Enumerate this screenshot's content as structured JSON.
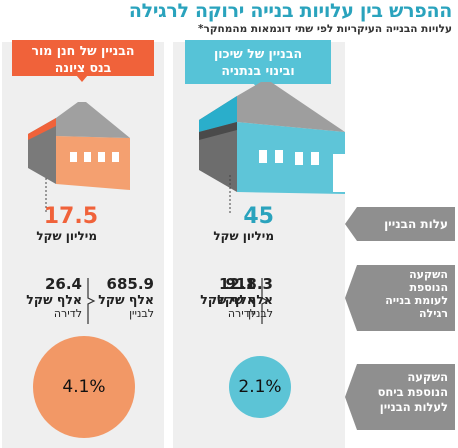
{
  "title": "ההפרש בין עלויות בנייה ירוקה לרגילה",
  "subtitle": "עלויות הבנייה העיקריות לפי שתי דוגמאות מהמחקר*",
  "colors": {
    "accent_blue": "#56c3d7",
    "accent_orange": "#f0623a",
    "circle_orange": "#f29866",
    "circle_blue": "#5cc4d6",
    "label_gray": "#8f8f8f"
  },
  "row_labels": {
    "building_cost": "עלות הבניין",
    "extra_investment": [
      "השקעה",
      "הנוספת",
      "לעומת בנייה",
      "רגילה"
    ],
    "ratio_investment": [
      "השקעה",
      "הנוספת ביחס",
      "לעלות הבניין"
    ]
  },
  "netanya": {
    "header": [
      "הבניין של שיכון",
      "ובינוי בנתניה"
    ],
    "cost_value": "45",
    "cost_unit": "מיליון שקל",
    "per_building_value": "918.3",
    "per_building_unit": "אלף שקל",
    "per_building_label": "לבניין",
    "per_unit_value": "12.1",
    "per_unit_unit": "אלף שקל",
    "per_unit_label": "לדירה",
    "ratio": "2.1%"
  },
  "ness_ziona": {
    "header": [
      "הבניין של חנן מור",
      "בנס ציונה"
    ],
    "cost_value": "17.5",
    "cost_unit": "מיליון שקל",
    "per_building_value": "685.9",
    "per_building_unit": "אלף שקל",
    "per_building_label": "לבניין",
    "per_unit_value": "26.4",
    "per_unit_unit": "אלף שקל",
    "per_unit_label": "לדירה",
    "ratio": "4.1%"
  }
}
